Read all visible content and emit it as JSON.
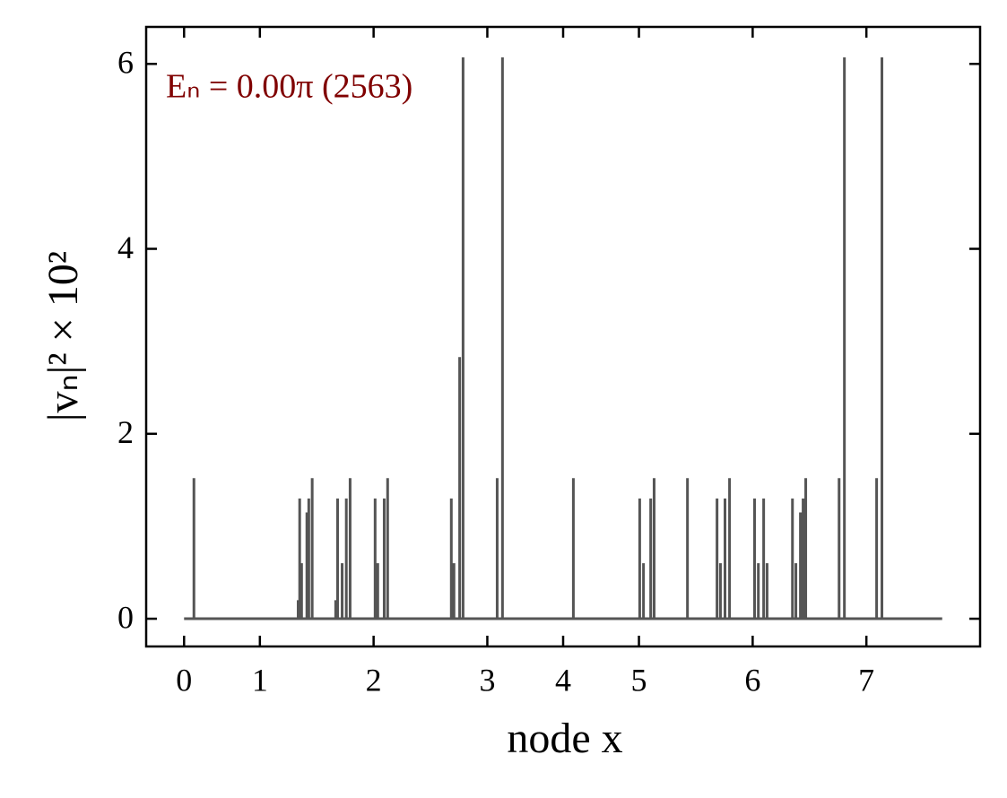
{
  "chart_data": {
    "type": "line",
    "annotation": "Eₙ = 0.00π (2563)",
    "xlabel": "node x",
    "ylabel": "|vₙ|² × 10²",
    "xlim": [
      -10,
      210
    ],
    "xticks": [
      {
        "value": 0,
        "label": "0"
      },
      {
        "value": 20,
        "label": "1"
      },
      {
        "value": 50,
        "label": "2"
      },
      {
        "value": 80,
        "label": "3"
      },
      {
        "value": 100,
        "label": "4"
      },
      {
        "value": 120,
        "label": "5"
      },
      {
        "value": 150,
        "label": "6"
      },
      {
        "value": 180,
        "label": "7"
      }
    ],
    "ylim": [
      -0.3,
      6.4
    ],
    "yticks": [
      0,
      2,
      4,
      6
    ],
    "grid": false,
    "x": [
      0,
      2.6,
      2.6,
      2.6,
      30.1,
      30.1,
      30.1,
      30.5,
      30.5,
      30.5,
      31.0,
      31.0,
      31.0,
      32.4,
      32.4,
      32.4,
      32.9,
      32.9,
      32.9,
      33.8,
      33.8,
      33.8,
      40.0,
      40.0,
      40.0,
      40.5,
      40.5,
      40.5,
      41.7,
      41.7,
      41.7,
      42.8,
      42.8,
      42.8,
      43.8,
      43.8,
      43.8,
      50.4,
      50.4,
      50.4,
      51.1,
      51.1,
      51.1,
      52.8,
      52.8,
      52.8,
      53.7,
      53.7,
      53.7,
      70.5,
      70.5,
      70.5,
      71.2,
      71.2,
      71.2,
      72.7,
      72.7,
      72.7,
      73.6,
      73.6,
      73.6,
      82.6,
      82.6,
      82.6,
      84.0,
      84.0,
      84.0,
      102.7,
      102.7,
      102.7,
      120.2,
      120.2,
      120.2,
      121.2,
      121.2,
      121.2,
      123.1,
      123.1,
      123.1,
      124.0,
      124.0,
      124.0,
      132.8,
      132.8,
      132.8,
      140.6,
      140.6,
      140.6,
      141.5,
      141.5,
      141.5,
      142.7,
      142.7,
      142.7,
      143.9,
      143.9,
      143.9,
      150.5,
      150.5,
      150.5,
      151.5,
      151.5,
      151.5,
      152.9,
      152.9,
      152.9,
      153.8,
      153.8,
      153.8,
      160.5,
      160.5,
      160.5,
      161.4,
      161.4,
      161.4,
      162.6,
      162.6,
      162.6,
      163.3,
      163.3,
      163.3,
      164.0,
      164.0,
      164.0,
      172.8,
      172.8,
      172.8,
      174.2,
      174.2,
      174.2,
      182.7,
      182.7,
      182.7,
      184.1,
      184.1,
      184.1,
      200
    ],
    "series": [
      {
        "name": "|vₙ|²",
        "color": "#555555",
        "values": [
          0,
          0,
          1.52,
          0,
          0,
          0.2,
          0,
          0,
          1.3,
          0,
          0,
          0.6,
          0,
          0,
          1.15,
          0,
          0,
          1.3,
          0,
          0,
          1.52,
          0,
          0,
          0.2,
          0,
          0,
          1.3,
          0,
          0,
          0.6,
          0,
          0,
          1.3,
          0,
          0,
          1.52,
          0,
          0,
          1.3,
          0,
          0,
          0.6,
          0,
          0,
          1.3,
          0,
          0,
          1.52,
          0,
          0,
          1.3,
          0,
          0,
          0.6,
          0,
          0,
          2.83,
          0,
          0,
          6.07,
          0,
          0,
          1.52,
          0,
          0,
          6.07,
          0,
          0,
          1.52,
          0,
          0,
          1.3,
          0,
          0,
          0.6,
          0,
          0,
          1.3,
          0,
          0,
          1.52,
          0,
          0,
          1.52,
          0,
          0,
          1.3,
          0,
          0,
          0.6,
          0,
          0,
          1.3,
          0,
          0,
          1.52,
          0,
          0,
          1.3,
          0,
          0,
          0.6,
          0,
          0,
          1.3,
          0,
          0,
          0.6,
          0,
          0,
          1.3,
          0,
          0,
          0.6,
          0,
          0,
          1.15,
          0,
          0,
          1.3,
          0,
          0,
          1.52,
          0,
          0,
          1.52,
          0,
          0,
          6.07,
          0,
          0,
          1.52,
          0,
          0,
          6.07,
          0,
          0
        ]
      }
    ]
  }
}
